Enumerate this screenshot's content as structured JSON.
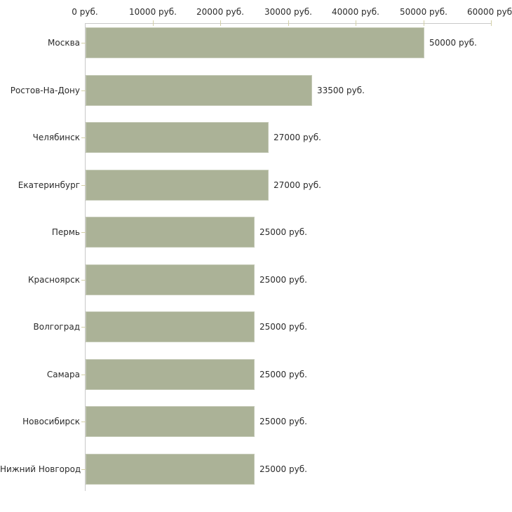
{
  "chart_data": {
    "type": "bar",
    "orientation": "horizontal",
    "title": "",
    "xlabel": "",
    "ylabel": "",
    "categories": [
      "Москва",
      "Ростов-На-Дону",
      "Челябинск",
      "Екатеринбург",
      "Пермь",
      "Красноярск",
      "Волгоград",
      "Самара",
      "Новосибирск",
      "Нижний Новгород"
    ],
    "values": [
      50000,
      33500,
      27000,
      27000,
      25000,
      25000,
      25000,
      25000,
      25000,
      25000
    ],
    "value_labels": [
      "50000 руб.",
      "33500 руб.",
      "27000 руб.",
      "27000 руб.",
      "25000 руб.",
      "25000 руб.",
      "25000 руб.",
      "25000 руб.",
      "25000 руб.",
      "25000 руб."
    ],
    "xlim": [
      0,
      60000
    ],
    "x_ticks": [
      0,
      10000,
      20000,
      30000,
      40000,
      50000,
      60000
    ],
    "x_tick_labels": [
      "0 руб.",
      "10000 руб.",
      "20000 руб.",
      "30000 руб.",
      "40000 руб.",
      "50000 руб.",
      "60000 руб."
    ],
    "x_axis_position": "top",
    "grid": false,
    "legend": "none",
    "colors": {
      "bar_fill": "#abb297",
      "bar_border": "#c6cbb8",
      "axis_line": "#c9c9c9",
      "tick": "#d2cfa6",
      "text": "#2a2a2a",
      "background": "#ffffff"
    }
  }
}
